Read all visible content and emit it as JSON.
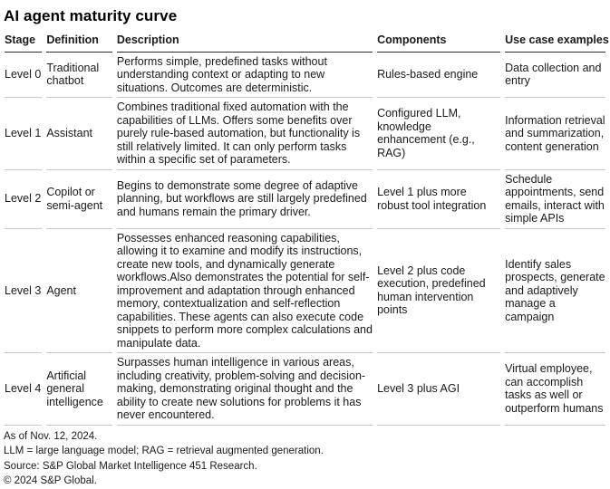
{
  "title": "AI agent maturity curve",
  "table": {
    "columns": [
      "Stage",
      "Definition",
      "Description",
      "Components",
      "Use case examples"
    ],
    "rows": [
      {
        "stage": "Level 0",
        "definition": "Traditional chatbot",
        "description": "Performs simple, predefined tasks without understanding context or adapting to new situations. Outcomes are deterministic.",
        "components": "Rules-based engine",
        "use_cases": "Data collection and entry"
      },
      {
        "stage": "Level 1",
        "definition": "Assistant",
        "description": "Combines traditional fixed automation with the capabilities of LLMs. Offers some benefits over purely rule-based automation, but functionality is still relatively limited. It can only perform tasks within a specific set of parameters.",
        "components": "Configured LLM, knowledge enhancement (e.g., RAG)",
        "use_cases": "Information retrieval and summarization, content generation"
      },
      {
        "stage": "Level 2",
        "definition": "Copilot or semi-agent",
        "description": "Begins to demonstrate some degree of adaptive planning, but workflows are still largely predefined and humans remain the primary driver.",
        "components": "Level 1 plus more robust tool integration",
        "use_cases": "Schedule appointments, send emails, interact with simple APIs"
      },
      {
        "stage": "Level 3",
        "definition": "Agent",
        "description": "Possesses enhanced reasoning capabilities, allowing it to examine and modify its instructions, create new tools, and dynamically generate workflows.Also demonstrates the potential for self-improvement and adaptation through enhanced memory, contextualization and self-reflection capabilities. These agents can also execute code snippets to perform more complex calculations and manipulate data.",
        "components": "Level 2 plus code execution, predefined human intervention points",
        "use_cases": "Identify sales prospects, generate and adaptively manage a campaign"
      },
      {
        "stage": "Level 4",
        "definition": "Artificial general intelligence",
        "description": "Surpasses human intelligence in various areas, including creativity, problem-solving and decision-making, demonstrating original thought and the ability to create new solutions for problems it has never encountered.",
        "components": "Level 3 plus AGI",
        "use_cases": "Virtual employee, can accomplish tasks as well or outperform humans"
      }
    ]
  },
  "footer": {
    "as_of": "As of Nov. 12, 2024.",
    "abbreviations": "LLM = large language model; RAG = retrieval augmented generation.",
    "source": "Source: S&P Global Market Intelligence 451 Research.",
    "copyright": "© 2024 S&P Global."
  },
  "colors": {
    "text": "#1a1a1a",
    "header_rule": "#2b2b2b",
    "row_rule": "#c9c9c9",
    "background": "#ffffff"
  }
}
